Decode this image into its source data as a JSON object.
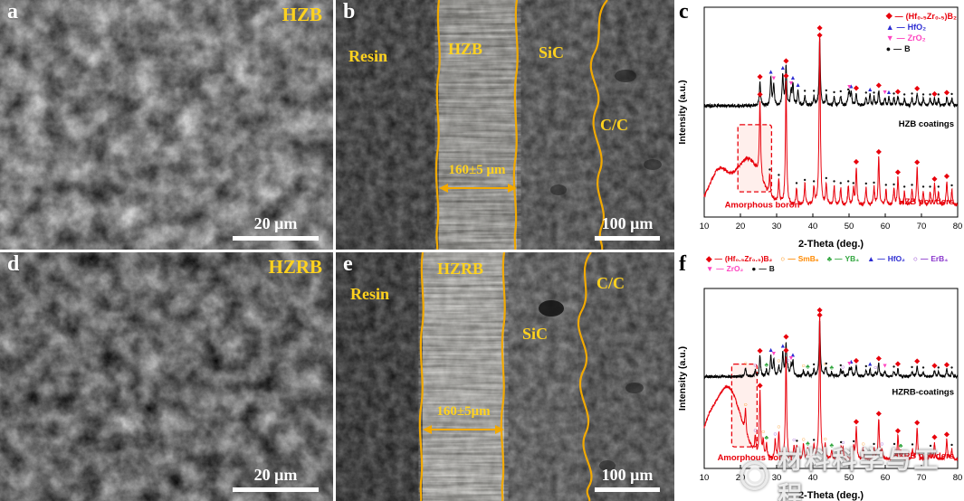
{
  "theme": {
    "label_gold": "#ffd21e",
    "boundary_gold": "#f2a900",
    "xrd_red": "#e8000b"
  },
  "panels": {
    "a": {
      "letter": "a",
      "title": "HZB",
      "scalebar_label": "20 μm"
    },
    "b": {
      "letter": "b",
      "resin": "Resin",
      "coating": "HZB",
      "sic": "SiC",
      "cc": "C/C",
      "thickness": "160±5 μm",
      "scalebar_label": "100 μm"
    },
    "c": {
      "letter": "c"
    },
    "d": {
      "letter": "d",
      "title": "HZRB",
      "scalebar_label": "20 μm"
    },
    "e": {
      "letter": "e",
      "resin": "Resin",
      "coating": "HZRB",
      "sic": "SiC",
      "cc": "C/C",
      "thickness": "160±5μm",
      "scalebar_label": "100 μm"
    },
    "f": {
      "letter": "f"
    }
  },
  "watermark": {
    "text": "材料科学与工程"
  },
  "chart_data": [
    {
      "id": "xrd-c",
      "type": "line",
      "panel": "c",
      "xlabel": "2-Theta (deg.)",
      "ylabel": "Intensity (a.u.)",
      "xlim": [
        10,
        80
      ],
      "xticks": [
        10,
        20,
        30,
        40,
        50,
        60,
        70,
        80
      ],
      "size": [
        317,
        276
      ],
      "margins": {
        "l": 30,
        "r": 7,
        "t": 8,
        "b": 36
      },
      "seed": 3,
      "legend_position": "top-right",
      "phases": {
        "hzb": {
          "glyph": "◆",
          "color": "#e8000b",
          "size": 8
        },
        "hfo2": {
          "glyph": "▲",
          "color": "#2d2dd2",
          "size": 7
        },
        "zro2": {
          "glyph": "▼",
          "color": "#ff44c0",
          "size": 7
        },
        "b": {
          "glyph": "●",
          "color": "#111111",
          "size": 5.5
        }
      },
      "legend": [
        {
          "glyph": "◆",
          "color": "#e8000b",
          "label": "(Hf₀.₅Zr₀.₅)B₂"
        },
        {
          "glyph": "▲",
          "color": "#2d2dd2",
          "label": "HfO₂"
        },
        {
          "glyph": "▼",
          "color": "#ff44c0",
          "label": "ZrO₂"
        },
        {
          "glyph": "●",
          "color": "#111111",
          "label": "B"
        }
      ],
      "series": [
        {
          "name": "HZB coatings",
          "color": "#000000",
          "base": 0.52,
          "amp": 0.33,
          "label_x": 79,
          "label_y": 0.43,
          "peaks": [
            [
              25.4,
              0.35,
              "hzb"
            ],
            [
              32.6,
              0.55,
              "hzb"
            ],
            [
              41.9,
              0.95,
              "hzb"
            ],
            [
              52.0,
              0.18,
              "hzb"
            ],
            [
              58.2,
              0.22,
              "hzb"
            ],
            [
              63.5,
              0.13,
              "hzb"
            ],
            [
              68.8,
              0.18,
              "hzb"
            ],
            [
              73.6,
              0.1,
              "hzb"
            ],
            [
              77.0,
              0.12,
              "hzb"
            ],
            [
              28.4,
              0.4,
              "hfo2"
            ],
            [
              31.7,
              0.45,
              "hfo2"
            ],
            [
              34.5,
              0.3,
              "hfo2"
            ],
            [
              35.9,
              0.22,
              "hfo2"
            ],
            [
              50.6,
              0.18,
              "hfo2"
            ],
            [
              55.8,
              0.16,
              "hfo2"
            ],
            [
              61.0,
              0.12,
              "hfo2"
            ],
            [
              29.2,
              0.3,
              "zro2"
            ],
            [
              34.0,
              0.2,
              "zro2"
            ],
            [
              50.1,
              0.14,
              "zro2"
            ],
            [
              59.9,
              0.12,
              "zro2"
            ],
            [
              37.8,
              0.15,
              "b"
            ],
            [
              40.3,
              0.14,
              "b"
            ],
            [
              43.7,
              0.15,
              "b"
            ],
            [
              45.9,
              0.13,
              "b"
            ],
            [
              47.7,
              0.14,
              "b"
            ],
            [
              49.8,
              0.12,
              "b"
            ],
            [
              54.7,
              0.12,
              "b"
            ],
            [
              56.9,
              0.12,
              "b"
            ],
            [
              62.4,
              0.11,
              "b"
            ],
            [
              65.3,
              0.1,
              "b"
            ],
            [
              67.4,
              0.11,
              "b"
            ],
            [
              70.5,
              0.1,
              "b"
            ],
            [
              72.4,
              0.1,
              "b"
            ],
            [
              74.7,
              0.1,
              "b"
            ],
            [
              78.4,
              0.11,
              "b"
            ]
          ]
        },
        {
          "name": "HZB powders",
          "color": "#e8000b",
          "base": 0.045,
          "amp": 0.82,
          "label_x": 79,
          "label_y": 0.06,
          "humps": [
            [
              14,
              2.5,
              0.16
            ],
            [
              22,
              3.5,
              0.22
            ]
          ],
          "peaks": [
            [
              25.4,
              0.45,
              "hzb"
            ],
            [
              32.6,
              0.72,
              "hzb"
            ],
            [
              41.9,
              1.0,
              "hzb"
            ],
            [
              52.0,
              0.22,
              "hzb"
            ],
            [
              58.2,
              0.28,
              "hzb"
            ],
            [
              63.5,
              0.16,
              "hzb"
            ],
            [
              68.8,
              0.22,
              "hzb"
            ],
            [
              73.6,
              0.12,
              "hzb"
            ],
            [
              77.0,
              0.14,
              "hzb"
            ],
            [
              28.1,
              0.12,
              "b"
            ],
            [
              30.6,
              0.13,
              "b"
            ],
            [
              35.5,
              0.1,
              "b"
            ],
            [
              37.8,
              0.12,
              "b"
            ],
            [
              40.3,
              0.1,
              "b"
            ],
            [
              43.7,
              0.12,
              "b"
            ],
            [
              45.9,
              0.11,
              "b"
            ],
            [
              47.7,
              0.1,
              "b"
            ],
            [
              49.8,
              0.11,
              "b"
            ],
            [
              51.2,
              0.09,
              "b"
            ],
            [
              54.7,
              0.1,
              "b"
            ],
            [
              56.9,
              0.1,
              "b"
            ],
            [
              60.2,
              0.09,
              "b"
            ],
            [
              62.4,
              0.09,
              "b"
            ],
            [
              65.3,
              0.08,
              "b"
            ],
            [
              67.4,
              0.09,
              "b"
            ],
            [
              70.5,
              0.08,
              "b"
            ],
            [
              72.4,
              0.08,
              "b"
            ],
            [
              74.7,
              0.08,
              "b"
            ],
            [
              78.4,
              0.09,
              "b"
            ]
          ]
        }
      ],
      "box": {
        "x0": 19.3,
        "x1": 28.6,
        "y0": 0.12,
        "y1": 0.44
      },
      "annotation": {
        "text": "Amorphous boron",
        "x": 26,
        "y": 0.045
      }
    },
    {
      "id": "xrd-f",
      "type": "line",
      "panel": "f",
      "xlabel": "2-Theta (deg.)",
      "ylabel": "Intensity (a.u.)",
      "xlim": [
        10,
        80
      ],
      "xticks": [
        10,
        20,
        30,
        40,
        50,
        60,
        70,
        80
      ],
      "size": [
        317,
        275
      ],
      "margins": {
        "l": 30,
        "r": 7,
        "t": 40,
        "b": 36
      },
      "seed": 9,
      "legend_position": "top",
      "phases": {
        "hzb": {
          "glyph": "◆",
          "color": "#e8000b",
          "size": 8
        },
        "smb6": {
          "glyph": "○",
          "color": "#ff8a00",
          "size": 7
        },
        "yb4": {
          "glyph": "♣",
          "color": "#2fa53c",
          "size": 7
        },
        "hfo2": {
          "glyph": "▲",
          "color": "#2d2dd2",
          "size": 7
        },
        "erb4": {
          "glyph": "○",
          "color": "#8833cc",
          "size": 7
        },
        "zro2": {
          "glyph": "▼",
          "color": "#ff44c0",
          "size": 7
        },
        "b": {
          "glyph": "●",
          "color": "#111111",
          "size": 5.5
        }
      },
      "legend": [
        {
          "glyph": "◆",
          "color": "#e8000b",
          "label": "(Hf₀.₅Zr₀.₅)B₂"
        },
        {
          "glyph": "○",
          "color": "#ff8a00",
          "label": "SmB₆"
        },
        {
          "glyph": "♣",
          "color": "#2fa53c",
          "label": "YB₄"
        },
        {
          "glyph": "▲",
          "color": "#2d2dd2",
          "label": "HfO₂"
        },
        {
          "glyph": "○",
          "color": "#8833cc",
          "label": "ErB₄"
        },
        {
          "glyph": "▼",
          "color": "#ff44c0",
          "label": "ZrO₂"
        },
        {
          "glyph": "●",
          "color": "#111111",
          "label": "B"
        }
      ],
      "series": [
        {
          "name": "HZRB-coatings",
          "color": "#000000",
          "base": 0.5,
          "amp": 0.33,
          "label_x": 79,
          "label_y": 0.41,
          "peaks": [
            [
              25.4,
              0.35,
              "hzb"
            ],
            [
              32.6,
              0.55,
              "hzb"
            ],
            [
              41.9,
              0.95,
              "hzb"
            ],
            [
              52.0,
              0.18,
              "hzb"
            ],
            [
              58.2,
              0.22,
              "hzb"
            ],
            [
              63.5,
              0.13,
              "hzb"
            ],
            [
              68.8,
              0.18,
              "hzb"
            ],
            [
              73.6,
              0.1,
              "hzb"
            ],
            [
              77.0,
              0.12,
              "hzb"
            ],
            [
              28.4,
              0.35,
              "hfo2"
            ],
            [
              31.7,
              0.4,
              "hfo2"
            ],
            [
              34.5,
              0.25,
              "hfo2"
            ],
            [
              50.6,
              0.15,
              "hfo2"
            ],
            [
              55.8,
              0.13,
              "hfo2"
            ],
            [
              29.2,
              0.28,
              "zro2"
            ],
            [
              34.0,
              0.18,
              "zro2"
            ],
            [
              50.1,
              0.12,
              "zro2"
            ],
            [
              59.9,
              0.1,
              "zro2"
            ],
            [
              21.4,
              0.14,
              "smb6"
            ],
            [
              30.6,
              0.16,
              "smb6"
            ],
            [
              37.4,
              0.1,
              "smb6"
            ],
            [
              43.4,
              0.08,
              "smb6"
            ],
            [
              27.2,
              0.1,
              "yb4"
            ],
            [
              38.6,
              0.08,
              "yb4"
            ],
            [
              45.2,
              0.07,
              "yb4"
            ],
            [
              24.1,
              0.1,
              "erb4"
            ],
            [
              33.1,
              0.1,
              "erb4"
            ],
            [
              48.3,
              0.07,
              "erb4"
            ],
            [
              57.3,
              0.06,
              "erb4"
            ],
            [
              40.3,
              0.12,
              "b"
            ],
            [
              43.7,
              0.11,
              "b"
            ],
            [
              47.7,
              0.11,
              "b"
            ],
            [
              54.7,
              0.1,
              "b"
            ],
            [
              62.4,
              0.09,
              "b"
            ],
            [
              67.4,
              0.09,
              "b"
            ],
            [
              70.5,
              0.08,
              "b"
            ],
            [
              74.7,
              0.08,
              "b"
            ],
            [
              78.4,
              0.08,
              "b"
            ]
          ]
        },
        {
          "name": "HZRB powders",
          "color": "#e8000b",
          "base": 0.04,
          "amp": 0.8,
          "label_x": 79,
          "label_y": 0.055,
          "humps": [
            [
              11,
              2.0,
              0.12
            ],
            [
              16.5,
              3.5,
              0.4
            ]
          ],
          "peaks": [
            [
              25.4,
              0.45,
              "hzb"
            ],
            [
              32.6,
              0.72,
              "hzb"
            ],
            [
              41.9,
              1.0,
              "hzb"
            ],
            [
              52.0,
              0.22,
              "hzb"
            ],
            [
              58.2,
              0.28,
              "hzb"
            ],
            [
              63.5,
              0.16,
              "hzb"
            ],
            [
              68.8,
              0.22,
              "hzb"
            ],
            [
              73.6,
              0.12,
              "hzb"
            ],
            [
              77.0,
              0.14,
              "hzb"
            ],
            [
              21.4,
              0.16,
              "smb6"
            ],
            [
              26.3,
              0.12,
              "smb6"
            ],
            [
              30.6,
              0.18,
              "smb6"
            ],
            [
              37.4,
              0.1,
              "smb6"
            ],
            [
              43.4,
              0.09,
              "smb6"
            ],
            [
              53.9,
              0.07,
              "smb6"
            ],
            [
              24.1,
              0.11,
              "erb4"
            ],
            [
              29.6,
              0.13,
              "erb4"
            ],
            [
              34.8,
              0.09,
              "erb4"
            ],
            [
              48.3,
              0.07,
              "erb4"
            ],
            [
              59.1,
              0.06,
              "erb4"
            ],
            [
              27.2,
              0.1,
              "yb4"
            ],
            [
              38.6,
              0.07,
              "yb4"
            ],
            [
              45.2,
              0.06,
              "yb4"
            ],
            [
              64.3,
              0.05,
              "yb4"
            ],
            [
              35.6,
              0.09,
              "b"
            ],
            [
              40.3,
              0.09,
              "b"
            ],
            [
              47.8,
              0.08,
              "b"
            ],
            [
              51.3,
              0.08,
              "b"
            ],
            [
              56.9,
              0.07,
              "b"
            ],
            [
              62.5,
              0.07,
              "b"
            ],
            [
              67.5,
              0.07,
              "b"
            ],
            [
              72.5,
              0.06,
              "b"
            ],
            [
              78.4,
              0.07,
              "b"
            ]
          ]
        }
      ],
      "box": {
        "x0": 17.6,
        "x1": 24.6,
        "y0": 0.12,
        "y1": 0.58
      },
      "annotation": {
        "text": "Amorphous boron",
        "x": 24,
        "y": 0.045
      }
    }
  ]
}
